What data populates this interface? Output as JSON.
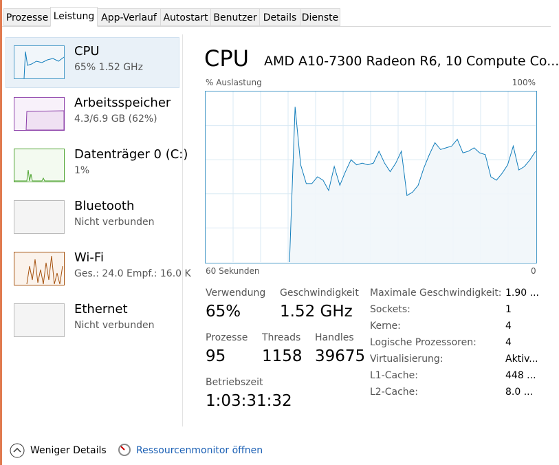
{
  "tabs": [
    "Prozesse",
    "Leistung",
    "App-Verlauf",
    "Autostart",
    "Benutzer",
    "Details",
    "Dienste"
  ],
  "sidebar": {
    "items": [
      {
        "name": "CPU",
        "detail": "65%  1.52 GHz"
      },
      {
        "name": "Arbeitsspeicher",
        "detail": "4.3/6.9 GB (62%)"
      },
      {
        "name": "Datenträger 0 (C:)",
        "detail": "1%"
      },
      {
        "name": "Bluetooth",
        "detail": "Nicht verbunden"
      },
      {
        "name": "Wi-Fi",
        "detail": "Ges.: 24.0  Empf.: 16.0 K"
      },
      {
        "name": "Ethernet",
        "detail": "Nicht verbunden"
      }
    ]
  },
  "header": {
    "title": "CPU",
    "model": "AMD A10-7300 Radeon R6, 10 Compute Co..."
  },
  "graph": {
    "y_label": "% Auslastung",
    "max_label": "100%",
    "x_left_label": "60 Sekunden",
    "x_right_label": "0",
    "values": [
      null,
      null,
      null,
      null,
      null,
      null,
      null,
      null,
      null,
      null,
      null,
      null,
      null,
      null,
      null,
      0,
      91,
      57,
      46,
      46,
      50,
      48,
      42,
      56,
      45,
      53,
      60,
      57,
      58,
      57,
      58,
      65,
      58,
      53,
      58,
      65,
      39,
      41,
      45,
      55,
      63,
      70,
      66,
      67,
      68,
      72,
      64,
      65,
      67,
      64,
      63,
      50,
      48,
      52,
      57,
      68,
      54,
      56,
      60,
      65
    ]
  },
  "stats": [
    {
      "label": "Verwendung",
      "value": "65%"
    },
    {
      "label": "Geschwindigkeit",
      "value": "1.52 GHz"
    },
    {
      "label": "Prozesse",
      "value": "95"
    },
    {
      "label": "Threads",
      "value": "1158"
    },
    {
      "label": "Handles",
      "value": "39675"
    },
    {
      "label": "Betriebszeit",
      "value": "1:03:31:32"
    }
  ],
  "details": [
    [
      "Maximale Geschwindigkeit:",
      "1.90 ..."
    ],
    [
      "Sockets:",
      "1"
    ],
    [
      "Kerne:",
      "4"
    ],
    [
      "Logische Prozessoren:",
      "4"
    ],
    [
      "Virtualisierung:",
      "Aktiv..."
    ],
    [
      "L1-Cache:",
      "448 ..."
    ],
    [
      "L2-Cache:",
      "8.0 ..."
    ]
  ],
  "footer": {
    "less_details": "Weniger Details",
    "resource_monitor": "Ressourcenmonitor öffnen"
  }
}
